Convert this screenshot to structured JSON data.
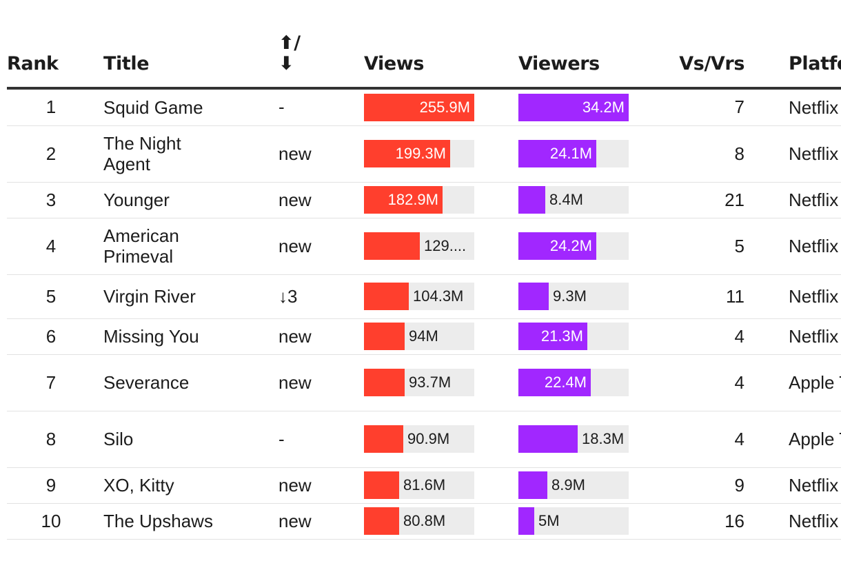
{
  "headers": {
    "rank": "Rank",
    "title": "Title",
    "change_top": "⬆/",
    "change_bottom": "⬇",
    "views": "Views",
    "viewers": "Viewers",
    "vsvrs": "Vs/Vrs",
    "platform": "Platform"
  },
  "colors": {
    "views": "#ff3f2d",
    "viewers": "#a127ff",
    "track": "#ececec"
  },
  "chart_data": {
    "type": "table",
    "views_max": 255.9,
    "viewers_max": 34.2,
    "unit": "M",
    "rows": [
      {
        "rank": "1",
        "title": "Squid Game",
        "change": "-",
        "views": 255.9,
        "views_label": "255.9M",
        "viewers": 34.2,
        "viewers_label": "34.2M",
        "vsvrs": "7",
        "platform": "Netflix"
      },
      {
        "rank": "2",
        "title": "The Night Agent",
        "change": "new",
        "views": 199.3,
        "views_label": "199.3M",
        "viewers": 24.1,
        "viewers_label": "24.1M",
        "vsvrs": "8",
        "platform": "Netflix"
      },
      {
        "rank": "3",
        "title": "Younger",
        "change": "new",
        "views": 182.9,
        "views_label": "182.9M",
        "viewers": 8.4,
        "viewers_label": "8.4M",
        "vsvrs": "21",
        "platform": "Netflix"
      },
      {
        "rank": "4",
        "title": "American Primeval",
        "change": "new",
        "views": 129.0,
        "views_label": "129....",
        "viewers": 24.2,
        "viewers_label": "24.2M",
        "vsvrs": "5",
        "platform": "Netflix"
      },
      {
        "rank": "5",
        "title": "Virgin River",
        "change": "↓3",
        "views": 104.3,
        "views_label": "104.3M",
        "viewers": 9.3,
        "viewers_label": "9.3M",
        "vsvrs": "11",
        "platform": "Netflix"
      },
      {
        "rank": "6",
        "title": "Missing You",
        "change": "new",
        "views": 94,
        "views_label": "94M",
        "viewers": 21.3,
        "viewers_label": "21.3M",
        "vsvrs": "4",
        "platform": "Netflix"
      },
      {
        "rank": "7",
        "title": "Severance",
        "change": "new",
        "views": 93.7,
        "views_label": "93.7M",
        "viewers": 22.4,
        "viewers_label": "22.4M",
        "vsvrs": "4",
        "platform": "Apple TV+"
      },
      {
        "rank": "8",
        "title": "Silo",
        "change": "-",
        "views": 90.9,
        "views_label": "90.9M",
        "viewers": 18.3,
        "viewers_label": "18.3M",
        "vsvrs": "4",
        "platform": "Apple TV+"
      },
      {
        "rank": "9",
        "title": "XO, Kitty",
        "change": "new",
        "views": 81.6,
        "views_label": "81.6M",
        "viewers": 8.9,
        "viewers_label": "8.9M",
        "vsvrs": "9",
        "platform": "Netflix"
      },
      {
        "rank": "10",
        "title": "The Upshaws",
        "change": "new",
        "views": 80.8,
        "views_label": "80.8M",
        "viewers": 5,
        "viewers_label": "5M",
        "vsvrs": "16",
        "platform": "Netflix"
      }
    ]
  }
}
